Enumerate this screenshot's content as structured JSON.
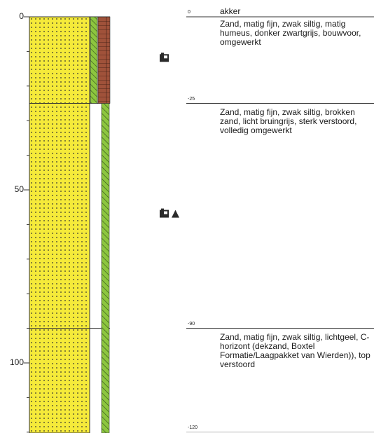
{
  "axis": {
    "ticks": [
      "0",
      "50",
      "100"
    ]
  },
  "layers": [
    {
      "top": 0,
      "top_label": "0",
      "name": "akker",
      "description": "Zand, matig fijn, zwak siltig, matig humeus, donker zwartgrijs, bouwvoor, omgewerkt",
      "color": "#f5ea3a"
    },
    {
      "top": 25,
      "top_label": "-25",
      "name": "",
      "description": "Zand, matig fijn, zwak siltig, brokken zand, licht bruingrijs, sterk verstoord, volledig omgewerkt",
      "color": "#f5ea3a"
    },
    {
      "top": 90,
      "top_label": "-90",
      "name": "",
      "description": "Zand, matig fijn, zwak siltig, lichtgeel, C-horizont (dekzand, Boxtel Formatie/Laagpakket van Wierden)), top verstoord",
      "color": "#f5ea3a"
    }
  ],
  "bottom_label": "-120",
  "sample_markers": [
    {
      "depth": 12,
      "symbols": [
        "sample-icon"
      ]
    },
    {
      "depth": 57,
      "symbols": [
        "sample-icon",
        "triangle-icon"
      ]
    }
  ],
  "colors": {
    "sand": "#f5ea3a",
    "green_strip": "#8dc63f",
    "brown_strip": "#a0523a",
    "line": "#333333"
  }
}
